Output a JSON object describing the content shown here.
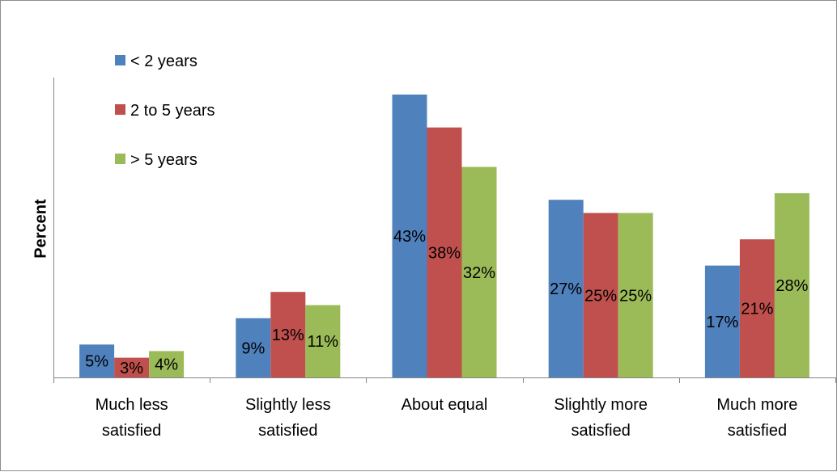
{
  "chart_data": {
    "type": "bar",
    "title": "",
    "xlabel": "",
    "ylabel": "Percent",
    "ylim": [
      0,
      45
    ],
    "grid": false,
    "legend_position": "top-left",
    "categories": [
      [
        "Much less",
        "satisfied"
      ],
      [
        "Slightly less",
        "satisfied"
      ],
      [
        "About equal"
      ],
      [
        "Slightly more",
        "satisfied"
      ],
      [
        "Much more",
        "satisfied"
      ]
    ],
    "series": [
      {
        "name": "< 2 years",
        "color": "#4F81BD",
        "values": [
          5,
          9,
          43,
          27,
          17
        ],
        "labels": [
          "5%",
          "9%",
          "43%",
          "27%",
          "17%"
        ]
      },
      {
        "name": "2 to 5 years",
        "color": "#C0504D",
        "values": [
          3,
          13,
          38,
          25,
          21
        ],
        "labels": [
          "3%",
          "13%",
          "38%",
          "25%",
          "21%"
        ]
      },
      {
        "name": "> 5 years",
        "color": "#9BBB59",
        "values": [
          4,
          11,
          32,
          25,
          28
        ],
        "labels": [
          "4%",
          "11%",
          "32%",
          "25%",
          "28%"
        ]
      }
    ]
  }
}
